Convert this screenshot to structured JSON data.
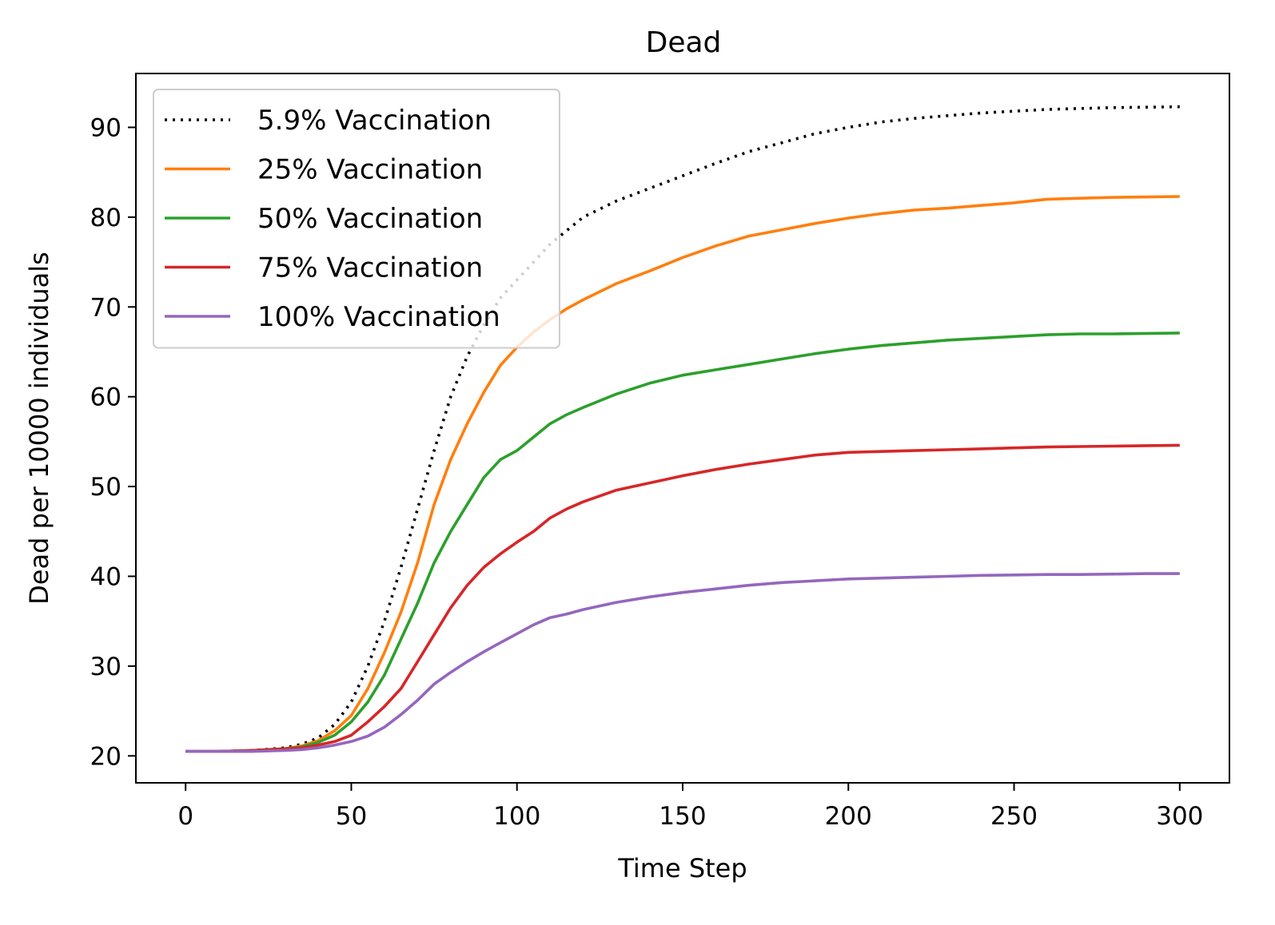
{
  "chart_data": {
    "type": "line",
    "title": "Dead",
    "xlabel": "Time Step",
    "ylabel": "Dead per 10000 individuals",
    "xlim": [
      -15,
      315
    ],
    "ylim": [
      17,
      96
    ],
    "xticks": [
      0,
      50,
      100,
      150,
      200,
      250,
      300
    ],
    "yticks": [
      20,
      30,
      40,
      50,
      60,
      70,
      80,
      90
    ],
    "grid": false,
    "legend_position": "top-left",
    "series": [
      {
        "name": "5.9% Vaccination",
        "color": "#000000",
        "style": "dotted",
        "x": [
          0,
          10,
          20,
          30,
          35,
          40,
          45,
          50,
          55,
          60,
          65,
          70,
          75,
          80,
          85,
          90,
          95,
          100,
          105,
          110,
          115,
          120,
          130,
          140,
          150,
          160,
          170,
          180,
          190,
          200,
          210,
          220,
          230,
          240,
          250,
          260,
          270,
          280,
          290,
          300
        ],
        "y": [
          20.5,
          20.5,
          20.6,
          20.9,
          21.3,
          22.0,
          23.5,
          26.0,
          30.0,
          35.0,
          41.0,
          47.5,
          54.0,
          60.0,
          64.5,
          68.0,
          71.0,
          73.0,
          75.0,
          77.0,
          78.5,
          80.0,
          81.8,
          83.2,
          84.6,
          86.0,
          87.3,
          88.3,
          89.3,
          90.0,
          90.6,
          91.0,
          91.3,
          91.6,
          91.8,
          92.0,
          92.1,
          92.2,
          92.25,
          92.3
        ]
      },
      {
        "name": "25% Vaccination",
        "color": "#ff7f0e",
        "style": "solid",
        "x": [
          0,
          10,
          20,
          30,
          35,
          40,
          45,
          50,
          55,
          60,
          65,
          70,
          75,
          80,
          85,
          90,
          95,
          100,
          105,
          110,
          115,
          120,
          130,
          140,
          150,
          160,
          170,
          180,
          190,
          200,
          210,
          220,
          230,
          240,
          250,
          260,
          270,
          280,
          290,
          300
        ],
        "y": [
          20.5,
          20.5,
          20.6,
          20.8,
          21.1,
          21.7,
          22.8,
          24.5,
          27.5,
          31.5,
          36.0,
          41.5,
          48.0,
          53.0,
          57.0,
          60.5,
          63.5,
          65.5,
          67.2,
          68.6,
          69.8,
          70.8,
          72.6,
          74.0,
          75.5,
          76.8,
          77.9,
          78.6,
          79.3,
          79.9,
          80.4,
          80.8,
          81.0,
          81.3,
          81.6,
          82.0,
          82.1,
          82.2,
          82.25,
          82.3
        ]
      },
      {
        "name": "50% Vaccination",
        "color": "#2ca02c",
        "style": "solid",
        "x": [
          0,
          10,
          20,
          30,
          35,
          40,
          45,
          50,
          55,
          60,
          65,
          70,
          75,
          80,
          85,
          90,
          95,
          100,
          105,
          110,
          115,
          120,
          130,
          140,
          150,
          160,
          170,
          180,
          190,
          200,
          210,
          220,
          230,
          240,
          250,
          260,
          270,
          280,
          290,
          300
        ],
        "y": [
          20.5,
          20.5,
          20.6,
          20.8,
          21.0,
          21.5,
          22.3,
          23.8,
          26.0,
          29.0,
          33.0,
          37.0,
          41.5,
          45.0,
          48.0,
          51.0,
          53.0,
          54.0,
          55.5,
          57.0,
          58.0,
          58.8,
          60.3,
          61.5,
          62.4,
          63.0,
          63.6,
          64.2,
          64.8,
          65.3,
          65.7,
          66.0,
          66.3,
          66.5,
          66.7,
          66.9,
          67.0,
          67.0,
          67.05,
          67.1
        ]
      },
      {
        "name": "75% Vaccination",
        "color": "#d62728",
        "style": "solid",
        "x": [
          0,
          10,
          20,
          30,
          35,
          40,
          45,
          50,
          55,
          60,
          65,
          70,
          75,
          80,
          85,
          90,
          95,
          100,
          105,
          110,
          115,
          120,
          130,
          140,
          150,
          160,
          170,
          180,
          190,
          200,
          210,
          220,
          230,
          240,
          250,
          260,
          270,
          280,
          290,
          300
        ],
        "y": [
          20.5,
          20.5,
          20.6,
          20.8,
          20.9,
          21.2,
          21.6,
          22.3,
          23.8,
          25.5,
          27.5,
          30.5,
          33.5,
          36.5,
          39.0,
          41.0,
          42.5,
          43.8,
          45.0,
          46.5,
          47.5,
          48.3,
          49.6,
          50.4,
          51.2,
          51.9,
          52.5,
          53.0,
          53.5,
          53.8,
          53.9,
          54.0,
          54.1,
          54.2,
          54.3,
          54.4,
          54.45,
          54.5,
          54.55,
          54.6
        ]
      },
      {
        "name": "100% Vaccination",
        "color": "#9467bd",
        "style": "solid",
        "x": [
          0,
          10,
          20,
          30,
          35,
          40,
          45,
          50,
          55,
          60,
          65,
          70,
          75,
          80,
          85,
          90,
          95,
          100,
          105,
          110,
          115,
          120,
          130,
          140,
          150,
          160,
          170,
          180,
          190,
          200,
          210,
          220,
          230,
          240,
          250,
          260,
          270,
          280,
          290,
          300
        ],
        "y": [
          20.5,
          20.5,
          20.5,
          20.6,
          20.7,
          20.9,
          21.2,
          21.6,
          22.2,
          23.2,
          24.6,
          26.2,
          28.0,
          29.3,
          30.5,
          31.6,
          32.6,
          33.6,
          34.6,
          35.4,
          35.8,
          36.3,
          37.1,
          37.7,
          38.2,
          38.6,
          39.0,
          39.3,
          39.5,
          39.7,
          39.8,
          39.9,
          40.0,
          40.1,
          40.15,
          40.2,
          40.2,
          40.25,
          40.3,
          40.3
        ]
      }
    ]
  }
}
